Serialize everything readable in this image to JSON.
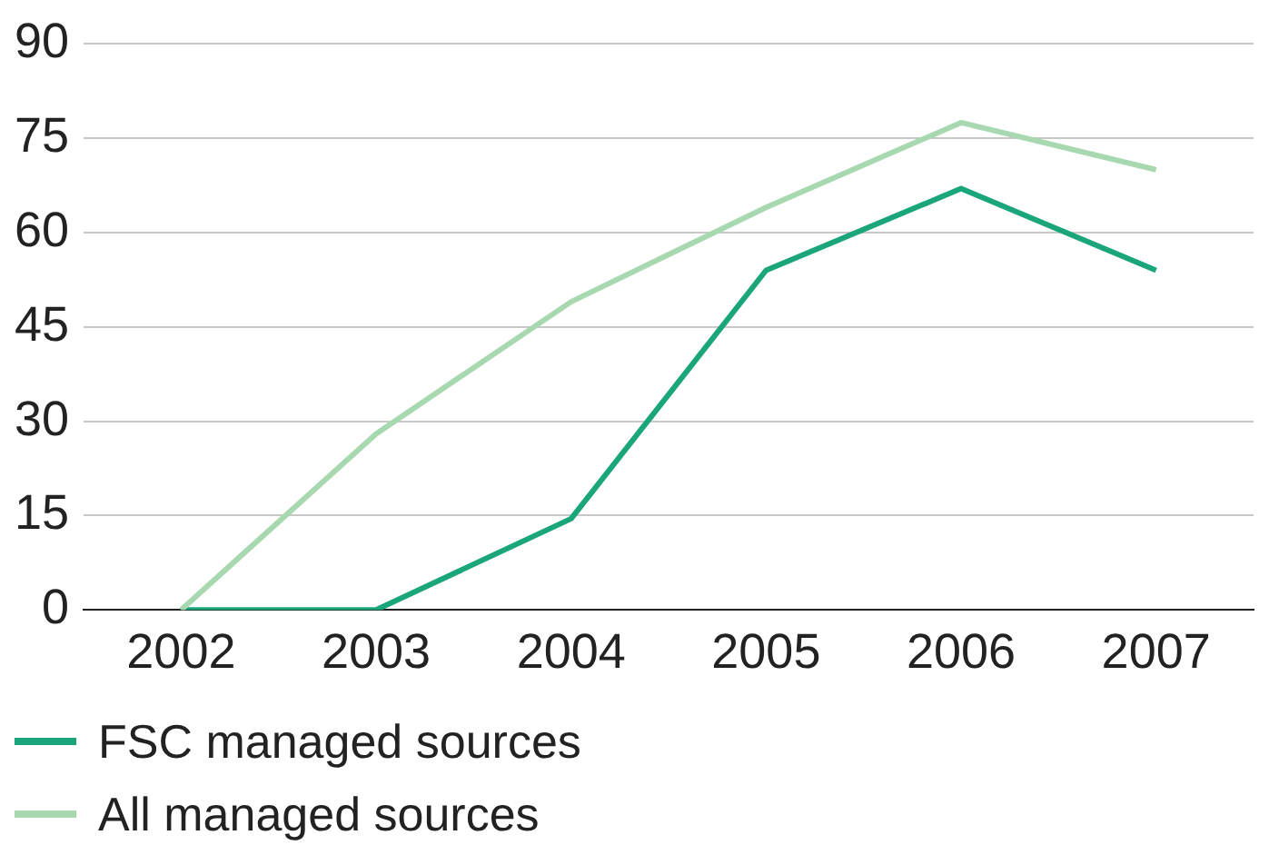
{
  "chart_data": {
    "type": "line",
    "categories": [
      "2002",
      "2003",
      "2004",
      "2005",
      "2006",
      "2007"
    ],
    "series": [
      {
        "name": "FSC managed sources",
        "color": "#1aa67a",
        "values": [
          0,
          0,
          14.5,
          54,
          67,
          54
        ]
      },
      {
        "name": "All managed sources",
        "color": "#a8d8b0",
        "values": [
          0,
          28,
          49,
          64,
          77.5,
          70
        ]
      }
    ],
    "ylim": [
      0,
      90
    ],
    "yticks": [
      0,
      15,
      30,
      45,
      60,
      75,
      90
    ],
    "grid": "y",
    "legend": "bottom left",
    "marker": "none",
    "line_style": "solid"
  }
}
